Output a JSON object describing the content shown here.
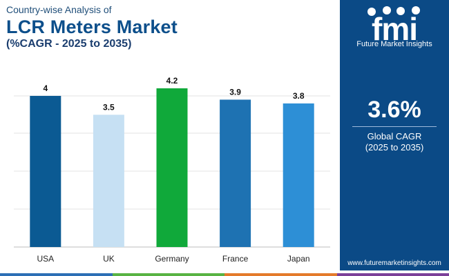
{
  "header": {
    "kicker": "Country-wise Analysis of",
    "title": "LCR Meters Market",
    "subtitle": "(%CAGR - 2025 to 2035)"
  },
  "chart_data": {
    "type": "bar",
    "categories": [
      "USA",
      "UK",
      "Germany",
      "France",
      "Japan"
    ],
    "values": [
      4,
      3.5,
      4.2,
      3.9,
      3.8
    ],
    "data_labels": [
      "4",
      "3.5",
      "4.2",
      "3.9",
      "3.8"
    ],
    "colors": [
      "#0b5a93",
      "#c6e0f3",
      "#10a93a",
      "#1e72b2",
      "#2d8fd6"
    ],
    "ylim": [
      0,
      4.2
    ],
    "grid": true,
    "legend": "none"
  },
  "sidebar": {
    "brand": "fmi",
    "brand_tagline": "Future Market Insights",
    "cagr_value": "3.6%",
    "cagr_label": "Global CAGR",
    "cagr_period": "(2025 to 2035)",
    "website": "www.futuremarketinsights.com"
  },
  "footer": {
    "colors": [
      "#2c6fb5",
      "#58b343",
      "#e47a2a",
      "#7b3f98"
    ]
  }
}
